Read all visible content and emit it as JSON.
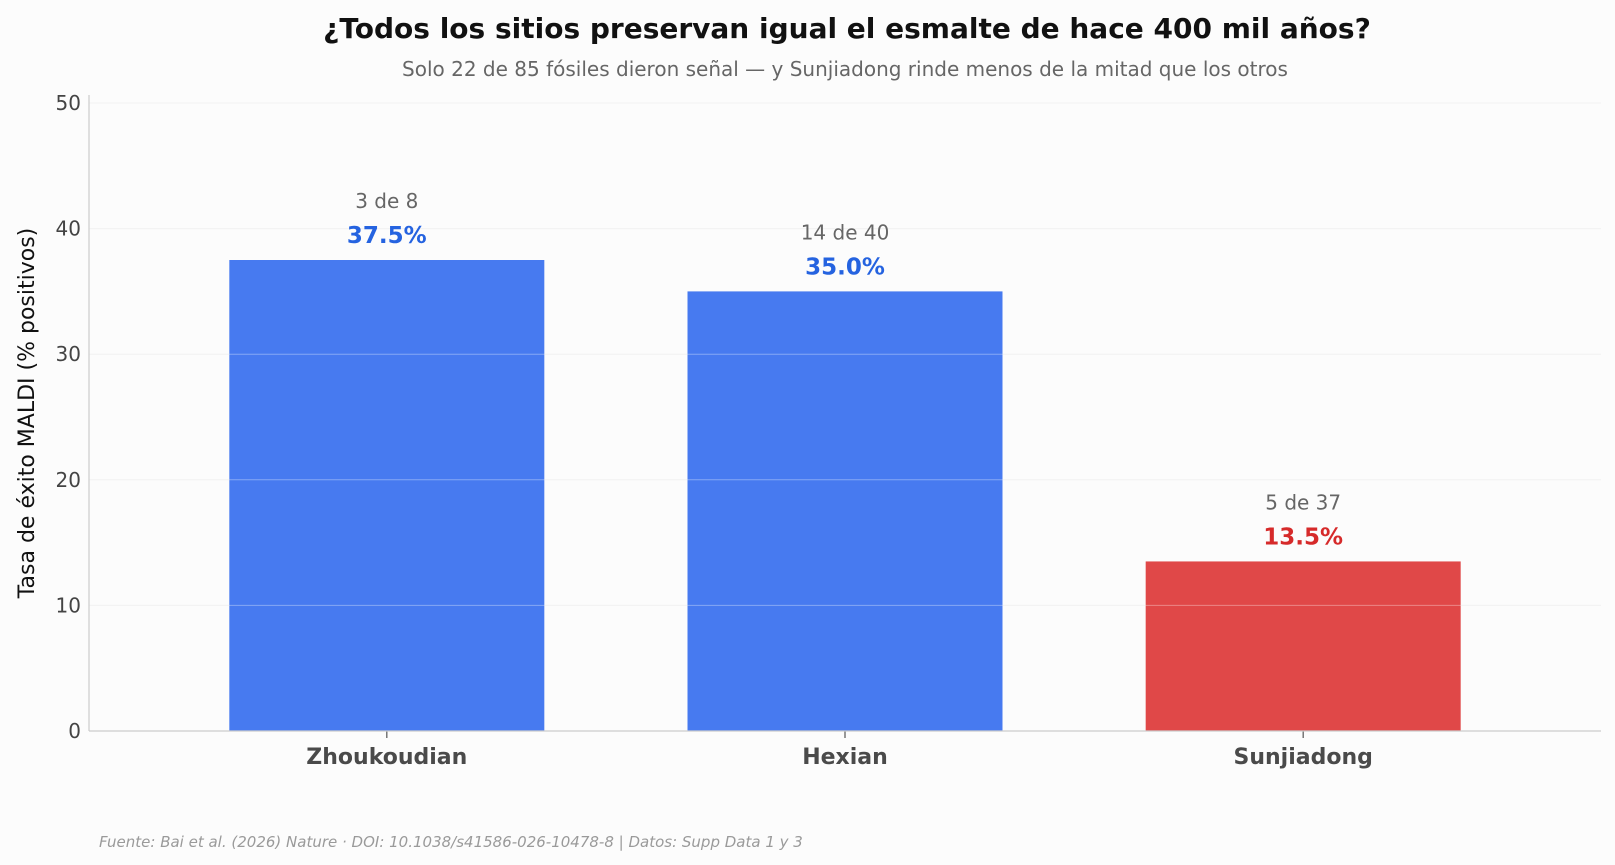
{
  "chart_data": {
    "type": "bar",
    "title": "¿Todos los sitios preservan igual el esmalte de hace 400 mil años?",
    "subtitle": "Solo 22 de 85 fósiles dieron señal — y Sunjiadong rinde menos de la mitad que los otros",
    "xlabel": "",
    "ylabel": "Tasa de éxito MALDI (% positivos)",
    "ylim": [
      0,
      50
    ],
    "yticks": [
      0,
      10,
      20,
      30,
      40,
      50
    ],
    "grid": true,
    "categories": [
      "Zhoukoudian",
      "Hexian",
      "Sunjiadong"
    ],
    "values": [
      37.5,
      35.0,
      13.5
    ],
    "value_labels": [
      "37.5%",
      "35.0%",
      "13.5%"
    ],
    "count_labels": [
      "3 de 8",
      "14 de 40",
      "5 de 37"
    ],
    "bar_colors": [
      "#477af0",
      "#477af0",
      "#e04848"
    ],
    "label_colors": [
      "#2563e0",
      "#2563e0",
      "#d62a2a"
    ],
    "source": "Fuente: Bai et al. (2026) Nature · DOI: 10.1038/s41586-026-10478-8 | Datos: Supp Data 1 y 3"
  }
}
